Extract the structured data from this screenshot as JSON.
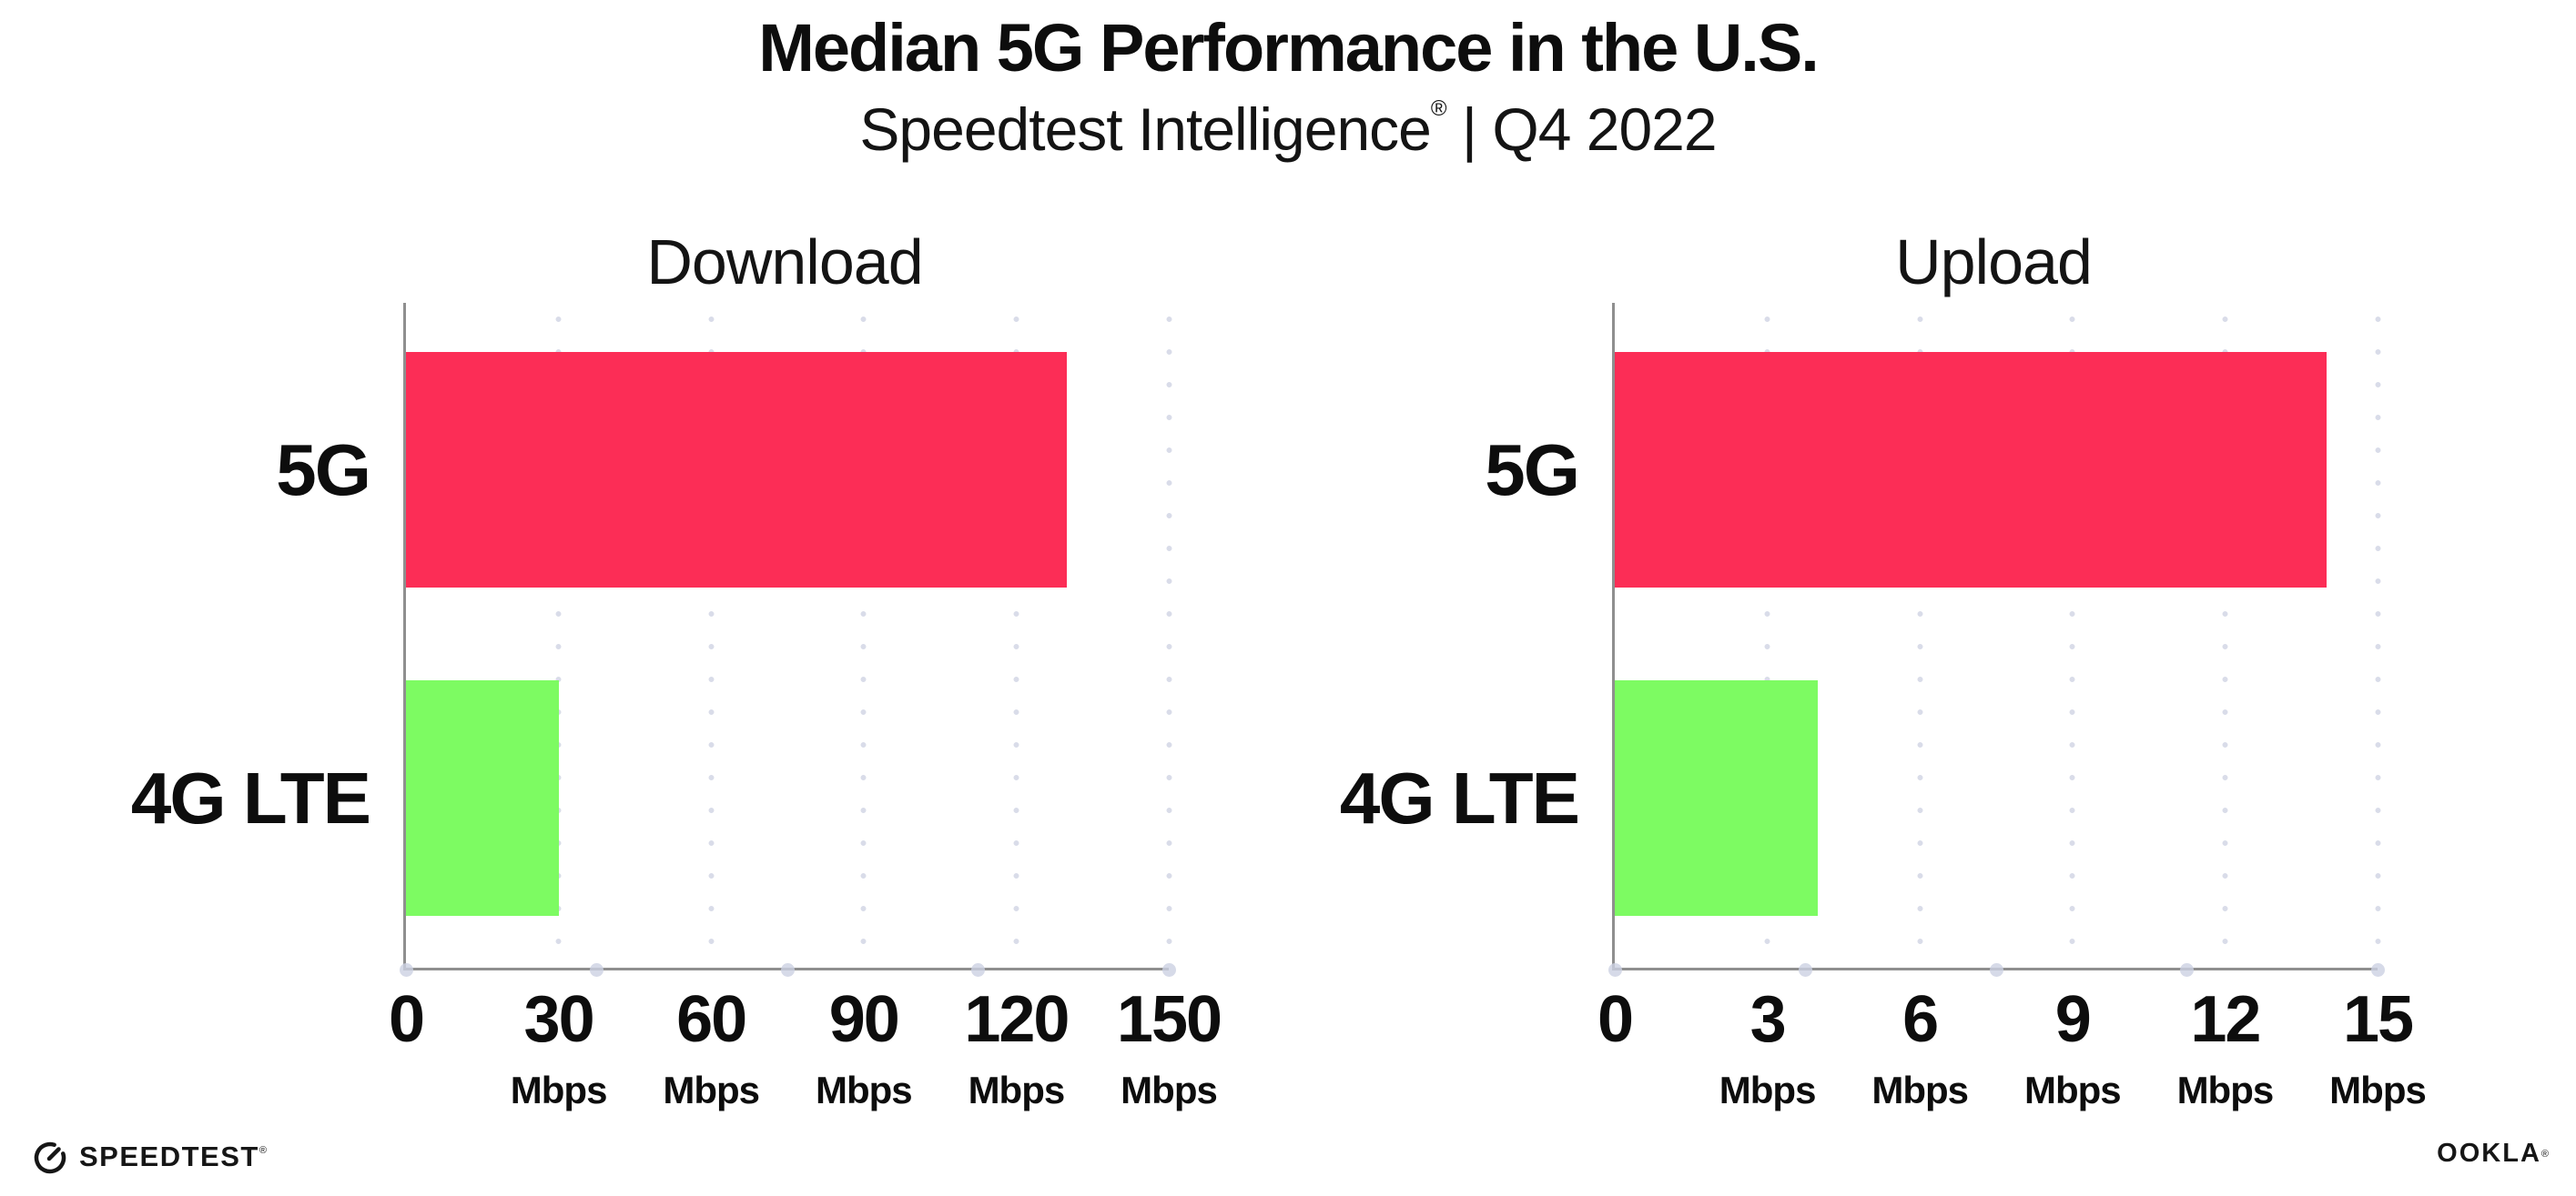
{
  "header": {
    "title": "Median 5G Performance in the U.S.",
    "subtitle_brand": "Speedtest Intelligence",
    "subtitle_reg": "®",
    "subtitle_rest": " | Q4 2022"
  },
  "colors": {
    "bar_5g": "#FC2D56",
    "bar_4g_lte": "#7DFB62",
    "axis_line": "#8f8f8f",
    "gridline_dots": "#d9dce9",
    "axis_quarter_dots": "#ccd1e2",
    "text": "#0d0d0d",
    "background": "#ffffff"
  },
  "footer": {
    "speedtest_label": "SPEEDTEST",
    "speedtest_reg": "®",
    "ookla_label": "OOKLA",
    "ookla_reg": "®"
  },
  "chart_data": [
    {
      "type": "bar",
      "orientation": "horizontal",
      "title": "Download",
      "categories": [
        "5G",
        "4G LTE"
      ],
      "values": [
        130,
        30
      ],
      "unit": "Mbps",
      "xlim": [
        0,
        150
      ],
      "xticks": [
        0,
        30,
        60,
        90,
        120,
        150
      ],
      "tick_unit_label": "Mbps",
      "grid": true,
      "legend": "none",
      "bar_colors": [
        "#FC2D56",
        "#7DFB62"
      ]
    },
    {
      "type": "bar",
      "orientation": "horizontal",
      "title": "Upload",
      "categories": [
        "5G",
        "4G LTE"
      ],
      "values": [
        14,
        4
      ],
      "unit": "Mbps",
      "xlim": [
        0,
        15
      ],
      "xticks": [
        0,
        3,
        6,
        9,
        12,
        15
      ],
      "tick_unit_label": "Mbps",
      "grid": true,
      "legend": "none",
      "bar_colors": [
        "#FC2D56",
        "#7DFB62"
      ]
    }
  ]
}
